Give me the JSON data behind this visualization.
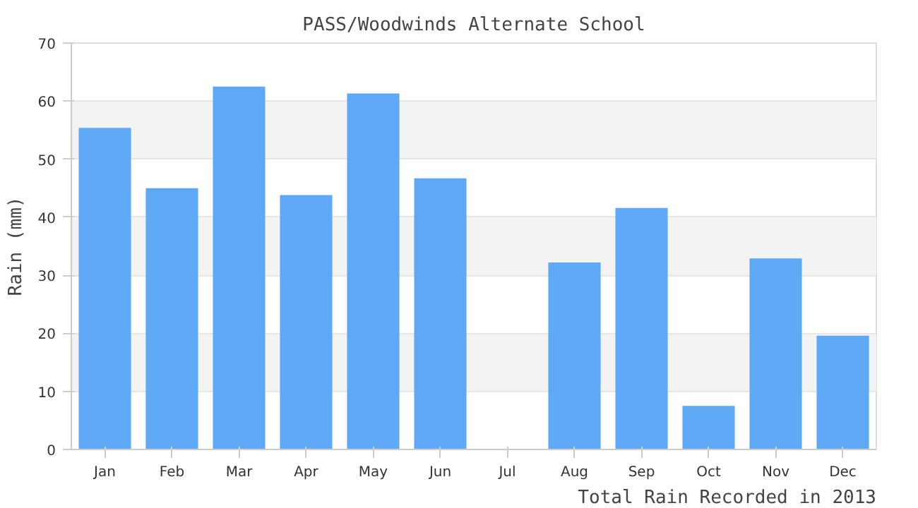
{
  "chart_data": {
    "type": "bar",
    "title": "PASS/Woodwinds Alternate School",
    "ylabel": "Rain (mm)",
    "categories": [
      "Jan",
      "Feb",
      "Mar",
      "Apr",
      "May",
      "Jun",
      "Jul",
      "Aug",
      "Sep",
      "Oct",
      "Nov",
      "Dec"
    ],
    "values": [
      55.4,
      45.0,
      62.5,
      43.8,
      61.3,
      46.7,
      null,
      32.2,
      41.6,
      7.5,
      32.9,
      19.6
    ],
    "color": "#5fa8f5",
    "ylim": [
      0,
      70
    ],
    "yticks": [
      0,
      10,
      20,
      30,
      40,
      50,
      60,
      70
    ],
    "grid": "y",
    "annotations": [
      "Total Rain Recorded in 2013"
    ]
  }
}
